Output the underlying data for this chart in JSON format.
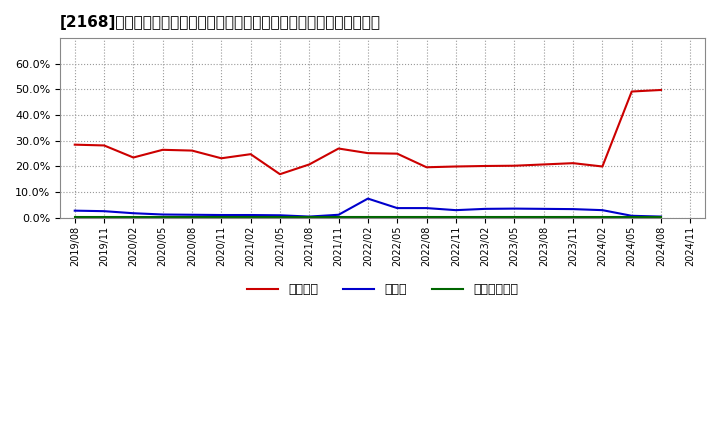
{
  "title": "[2168]　自己資本、のれん、繰延税金資産の総資産に対する比率の推移",
  "x_labels": [
    "2019/08",
    "2019/11",
    "2020/02",
    "2020/05",
    "2020/08",
    "2020/11",
    "2021/02",
    "2021/05",
    "2021/08",
    "2021/11",
    "2022/02",
    "2022/05",
    "2022/08",
    "2022/11",
    "2023/02",
    "2023/05",
    "2023/08",
    "2023/11",
    "2024/02",
    "2024/05",
    "2024/08",
    "2024/11"
  ],
  "jikoshihon": [
    0.285,
    0.282,
    0.235,
    0.265,
    0.262,
    0.232,
    0.248,
    0.17,
    0.208,
    0.27,
    0.252,
    0.25,
    0.197,
    0.2,
    0.202,
    0.203,
    0.208,
    0.213,
    0.2,
    0.492,
    0.498,
    null
  ],
  "noren": [
    0.028,
    0.026,
    0.018,
    0.013,
    0.012,
    0.011,
    0.011,
    0.01,
    0.005,
    0.012,
    0.075,
    0.038,
    0.038,
    0.03,
    0.035,
    0.036,
    0.035,
    0.034,
    0.03,
    0.008,
    0.005,
    null
  ],
  "kuenze": [
    0.003,
    0.003,
    0.003,
    0.003,
    0.003,
    0.003,
    0.003,
    0.003,
    0.003,
    0.003,
    0.003,
    0.003,
    0.003,
    0.003,
    0.003,
    0.003,
    0.003,
    0.003,
    0.003,
    0.003,
    0.003,
    null
  ],
  "jikoshihon_color": "#cc0000",
  "noren_color": "#0000cc",
  "kuenze_color": "#006600",
  "legend_labels": [
    "自己資本",
    "のれん",
    "繰延税金資産"
  ],
  "ylim": [
    0.0,
    0.7
  ],
  "yticks": [
    0.0,
    0.1,
    0.2,
    0.3,
    0.4,
    0.5,
    0.6
  ],
  "bg_color": "#ffffff",
  "plot_bg_color": "#ffffff",
  "grid_color": "#999999"
}
